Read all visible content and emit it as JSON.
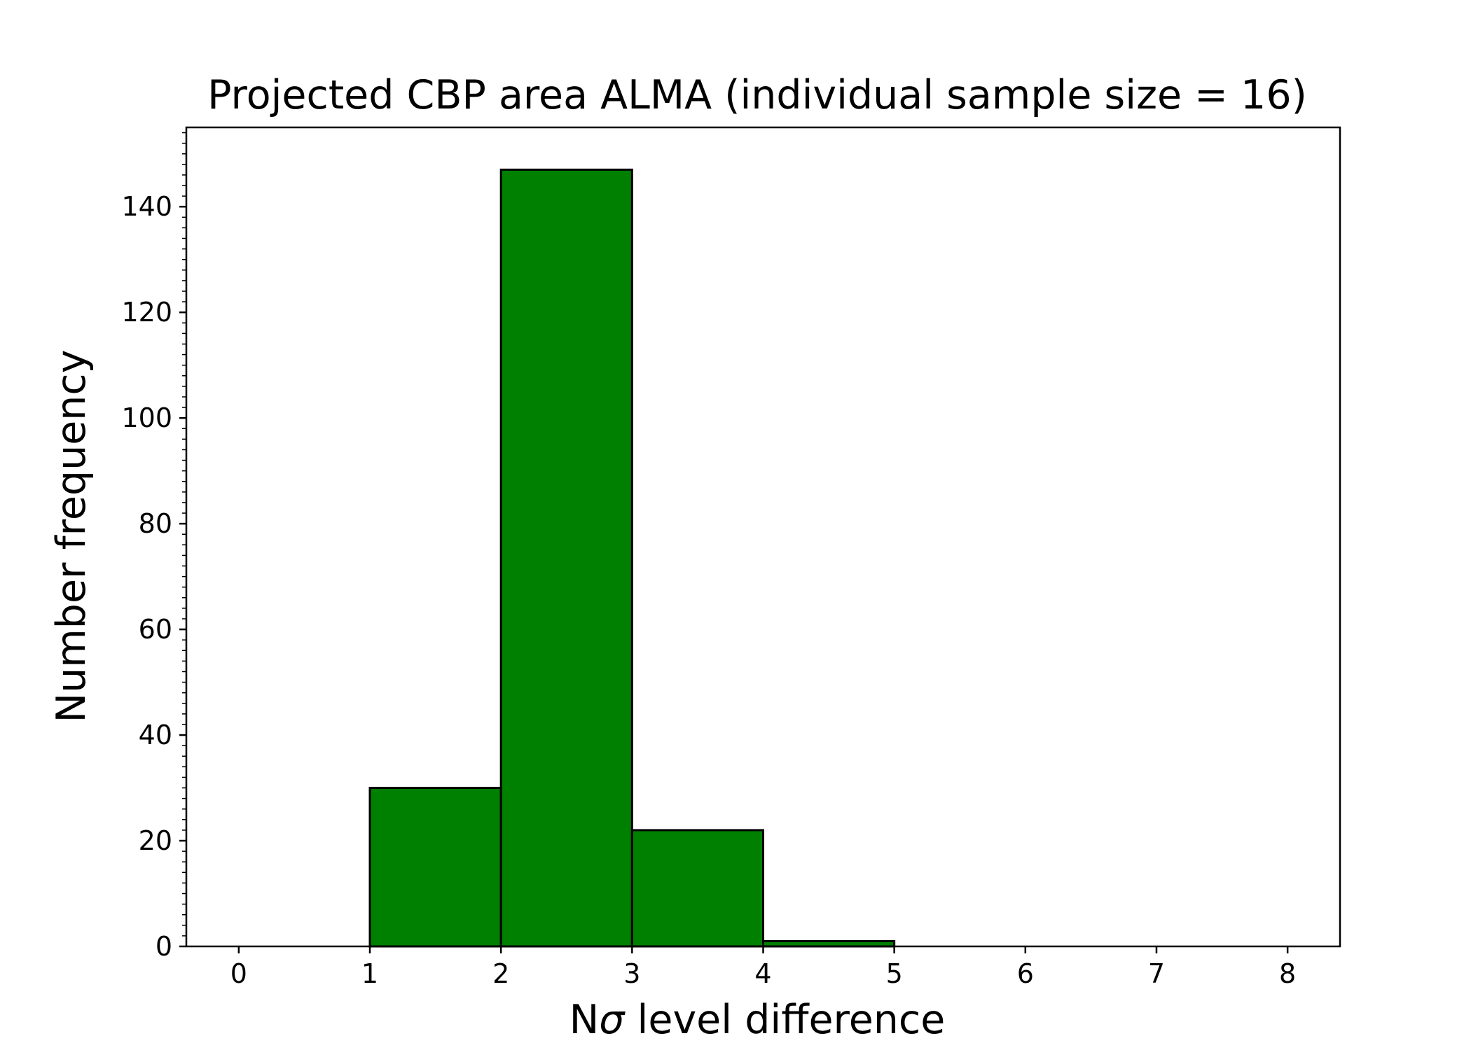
{
  "chart_data": {
    "type": "bar",
    "title": "Projected CBP area ALMA (individual sample size = 16)",
    "xlabel_prefix": "N",
    "xlabel_symbol": "σ",
    "xlabel_suffix": " level difference",
    "ylabel": "Number frequency",
    "bin_edges": [
      0,
      1,
      2,
      3,
      4,
      5,
      6,
      7,
      8
    ],
    "values": [
      0,
      30,
      147,
      22,
      1,
      0,
      0,
      0
    ],
    "xlim": [
      -0.4,
      8.4
    ],
    "ylim": [
      0,
      155
    ],
    "xticks": [
      "0",
      "1",
      "2",
      "3",
      "4",
      "5",
      "6",
      "7",
      "8"
    ],
    "yticks": [
      "0",
      "20",
      "40",
      "60",
      "80",
      "100",
      "120",
      "140"
    ],
    "ytick_values": [
      0,
      20,
      40,
      60,
      80,
      100,
      120,
      140
    ],
    "minor_y_step": 2,
    "bar_color": "#008000",
    "edge_color": "#000000",
    "grid": false,
    "legend": "none"
  }
}
